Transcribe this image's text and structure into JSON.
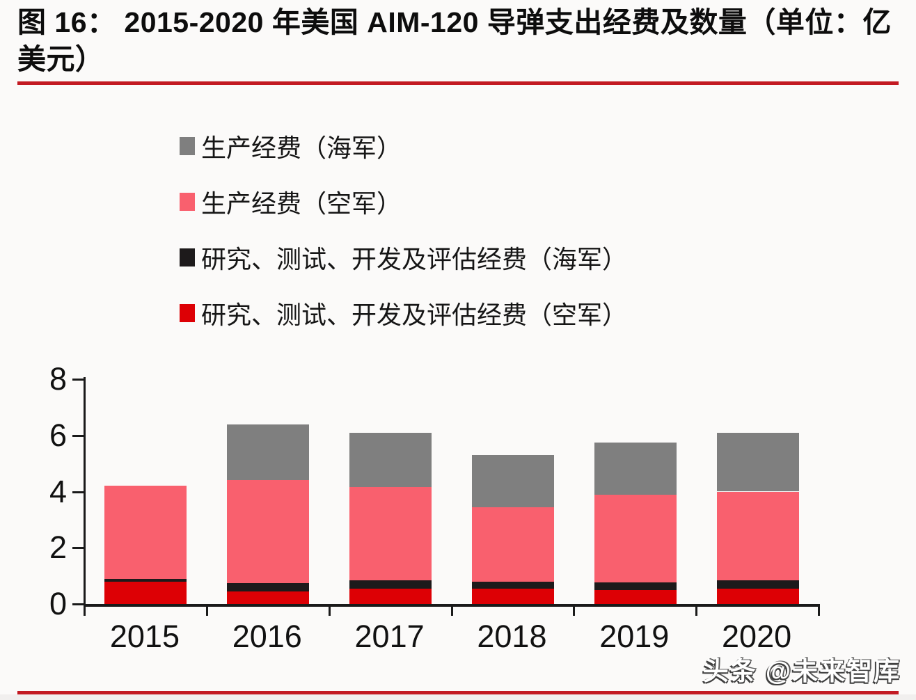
{
  "header": {
    "title": "图 16：  2015-2020 年美国 AIM-120 导弹支出经费及数量（单位：亿美元）"
  },
  "chart_data": {
    "type": "bar",
    "stacked": true,
    "title": "2015-2020 年美国 AIM-120 导弹支出经费及数量",
    "unit": "亿美元",
    "categories": [
      "2015",
      "2016",
      "2017",
      "2018",
      "2019",
      "2020"
    ],
    "series": [
      {
        "name": "研究、测试、开发及评估经费（空军）",
        "color": "#dd0005",
        "values": [
          0.8,
          0.45,
          0.55,
          0.55,
          0.5,
          0.55
        ]
      },
      {
        "name": "研究、测试、开发及评估经费（海军）",
        "color": "#1d1a1b",
        "values": [
          0.1,
          0.3,
          0.3,
          0.25,
          0.28,
          0.3
        ]
      },
      {
        "name": "生产经费（空军）",
        "color": "#f9606e",
        "values": [
          3.3,
          3.65,
          3.3,
          2.65,
          3.1,
          3.15
        ]
      },
      {
        "name": "生产经费（海军）",
        "color": "#7f7f7f",
        "values": [
          0.0,
          2.0,
          1.95,
          1.85,
          1.87,
          2.1
        ]
      }
    ],
    "totals": [
      4.2,
      6.4,
      6.1,
      5.3,
      5.75,
      6.1
    ],
    "ylim": [
      0,
      8
    ],
    "yticks": [
      0,
      2,
      4,
      6,
      8
    ],
    "grid": false,
    "legend_position": "top-left, vertical, order top-to-bottom = 生产经费（海军）, 生产经费（空军）, 研究、测试、开发及评估经费（海军）, 研究、测试、开发及评估经费（空军）"
  },
  "footer": {
    "watermark": "头条 @未来智库"
  },
  "colors": {
    "accent_rule": "#c31a22",
    "background": "#fbfaf9",
    "text": "#0e0e0e",
    "axis": "#1a1a1a"
  }
}
